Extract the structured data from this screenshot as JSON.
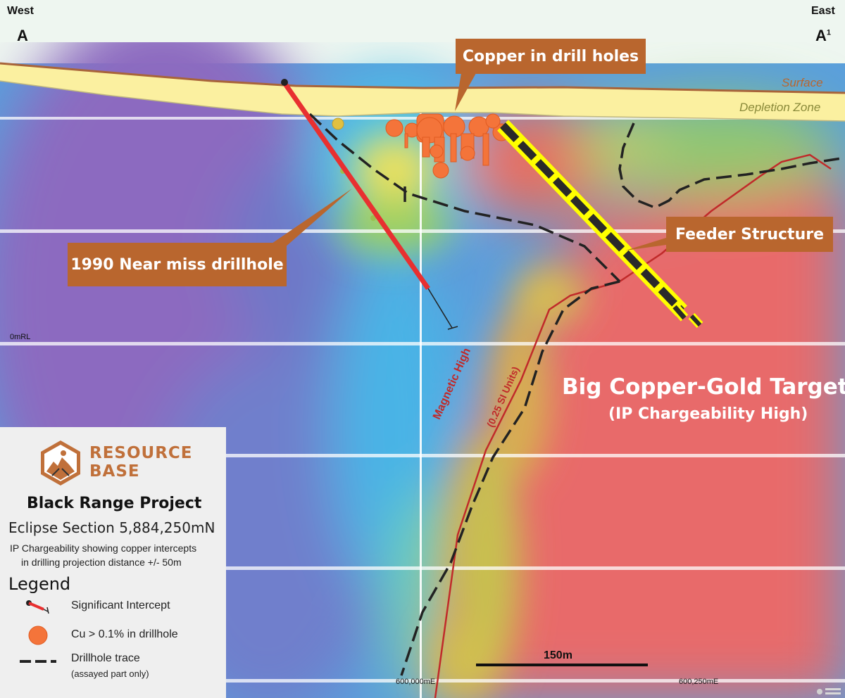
{
  "compass": {
    "west": "West",
    "east": "East",
    "a": "A",
    "a1": "A",
    "a1_sup": "1"
  },
  "callouts": {
    "copper": "Copper in drill holes",
    "feeder": "Feeder Structure",
    "near_miss": "1990 Near miss drillhole"
  },
  "labels": {
    "surface": "Surface",
    "depletion": "Depletion Zone",
    "mrl": "0mRL",
    "target_title": "Big Copper-Gold Target",
    "target_sub": "(IP Chargeability High)",
    "magnetic_1": "Magnetic High",
    "magnetic_2": "(0.25 SI Units)",
    "easting_1": "600,000mE",
    "easting_2": "600,250mE",
    "scale": "150m"
  },
  "legend": {
    "brand_1": "RESOURCE",
    "brand_2": "BASE",
    "project": "Black Range Project",
    "section": "Eclipse Section 5,884,250mN",
    "desc_1": "IP Chargeability showing copper intercepts",
    "desc_2": "in drilling projection distance +/- 50m",
    "title": "Legend",
    "items": [
      {
        "label": "Significant Intercept"
      },
      {
        "label": "Cu > 0.1% in drillhole"
      },
      {
        "label": "Drillhole trace",
        "sub": "(assayed part only)"
      }
    ]
  },
  "colors": {
    "callout": "#b9662e",
    "brand": "#c0703a",
    "target": "#ffffff",
    "magnetic": "#c02a2a",
    "surface_label": "#b9662e",
    "depletion_label": "#8a8a3a"
  }
}
